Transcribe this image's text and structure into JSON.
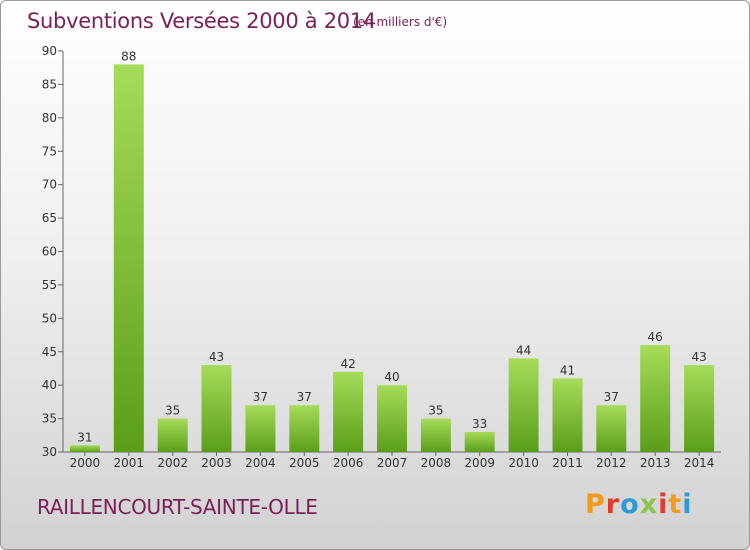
{
  "header": {
    "title": "Subventions Versées 2000 à 2014",
    "unit_note": "(en milliers d'€)"
  },
  "footer": {
    "commune": "RAILLENCOURT-SAINTE-OLLE",
    "logo_letters": [
      "P",
      "r",
      "o",
      "x",
      "i",
      "t",
      "i"
    ],
    "logo_colors": [
      "#f39a1a",
      "#e03b2c",
      "#2f9ad6",
      "#8bc34a",
      "#e03b2c",
      "#f39a1a",
      "#2f9ad6"
    ]
  },
  "colors": {
    "title": "#7a1f5a",
    "bar_top": "#a6dc5a",
    "bar_bottom": "#5a9e1a",
    "axis": "#555555"
  },
  "chart_data": {
    "type": "bar",
    "categories": [
      "2000",
      "2001",
      "2002",
      "2003",
      "2004",
      "2005",
      "2006",
      "2007",
      "2008",
      "2009",
      "2010",
      "2011",
      "2012",
      "2013",
      "2014"
    ],
    "values": [
      31,
      88,
      35,
      43,
      37,
      37,
      42,
      40,
      35,
      33,
      44,
      41,
      37,
      46,
      43
    ],
    "ylim": [
      30,
      90
    ],
    "yticks": [
      30,
      35,
      40,
      45,
      50,
      55,
      60,
      65,
      70,
      75,
      80,
      85,
      90
    ],
    "xlabel": "",
    "ylabel": "",
    "grid": false
  }
}
